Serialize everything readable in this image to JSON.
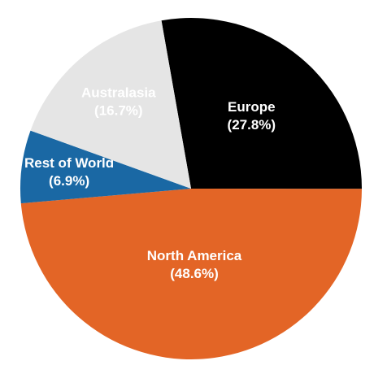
{
  "chart_data": {
    "type": "pie",
    "categories": [
      "Europe",
      "North America",
      "Rest of World",
      "Australasia"
    ],
    "values": [
      27.8,
      48.6,
      6.9,
      16.7
    ],
    "value_labels": [
      "(27.8%)",
      "(48.6%)",
      "(6.9%)",
      "(16.7%)"
    ],
    "colors": [
      "#000000",
      "#e36526",
      "#1a68a4",
      "#e5e5e5"
    ]
  }
}
